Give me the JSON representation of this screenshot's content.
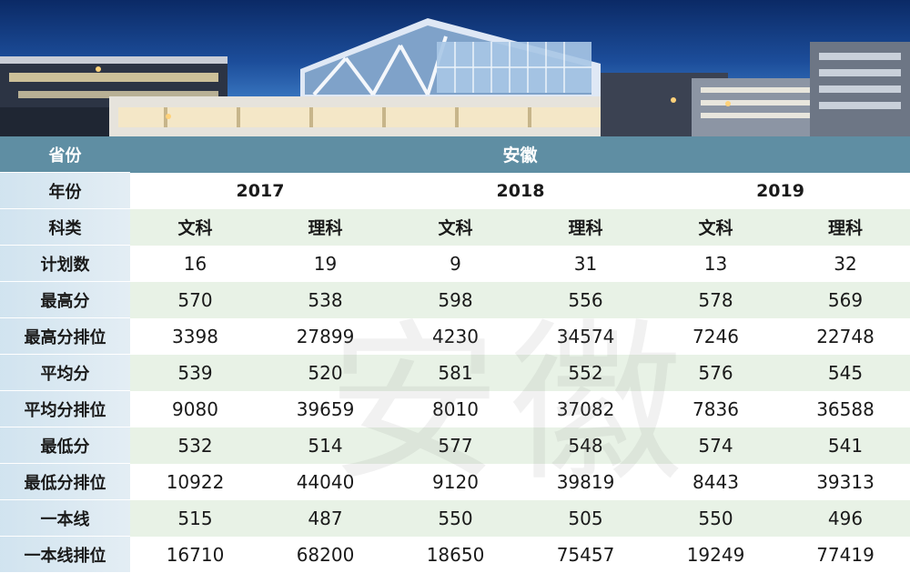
{
  "table": {
    "header": {
      "province_label": "省份",
      "province_value": "安徽",
      "year_label": "年份",
      "years": [
        "2017",
        "2018",
        "2019"
      ],
      "category_label": "科类",
      "categories": [
        "文科",
        "理科",
        "文科",
        "理科",
        "文科",
        "理科"
      ]
    },
    "rows": [
      {
        "label": "计划数",
        "values": [
          "16",
          "19",
          "9",
          "31",
          "13",
          "32"
        ]
      },
      {
        "label": "最高分",
        "values": [
          "570",
          "538",
          "598",
          "556",
          "578",
          "569"
        ]
      },
      {
        "label": "最高分排位",
        "values": [
          "3398",
          "27899",
          "4230",
          "34574",
          "7246",
          "22748"
        ]
      },
      {
        "label": "平均分",
        "values": [
          "539",
          "520",
          "581",
          "552",
          "576",
          "545"
        ]
      },
      {
        "label": "平均分排位",
        "values": [
          "9080",
          "39659",
          "8010",
          "37082",
          "7836",
          "36588"
        ]
      },
      {
        "label": "最低分",
        "values": [
          "532",
          "514",
          "577",
          "548",
          "574",
          "541"
        ]
      },
      {
        "label": "最低分排位",
        "values": [
          "10922",
          "44040",
          "9120",
          "39819",
          "8443",
          "39313"
        ]
      },
      {
        "label": "一本线",
        "values": [
          "515",
          "487",
          "550",
          "505",
          "550",
          "496"
        ]
      },
      {
        "label": "一本线排位",
        "values": [
          "16710",
          "68200",
          "18650",
          "75457",
          "19249",
          "77419"
        ]
      }
    ]
  },
  "watermark": "安徽",
  "colors": {
    "header_bg": "#5f8ea3",
    "row_green": "#e5f0e2",
    "row_label_bg": "#cde1ee",
    "sky": "#1c4d9a"
  }
}
